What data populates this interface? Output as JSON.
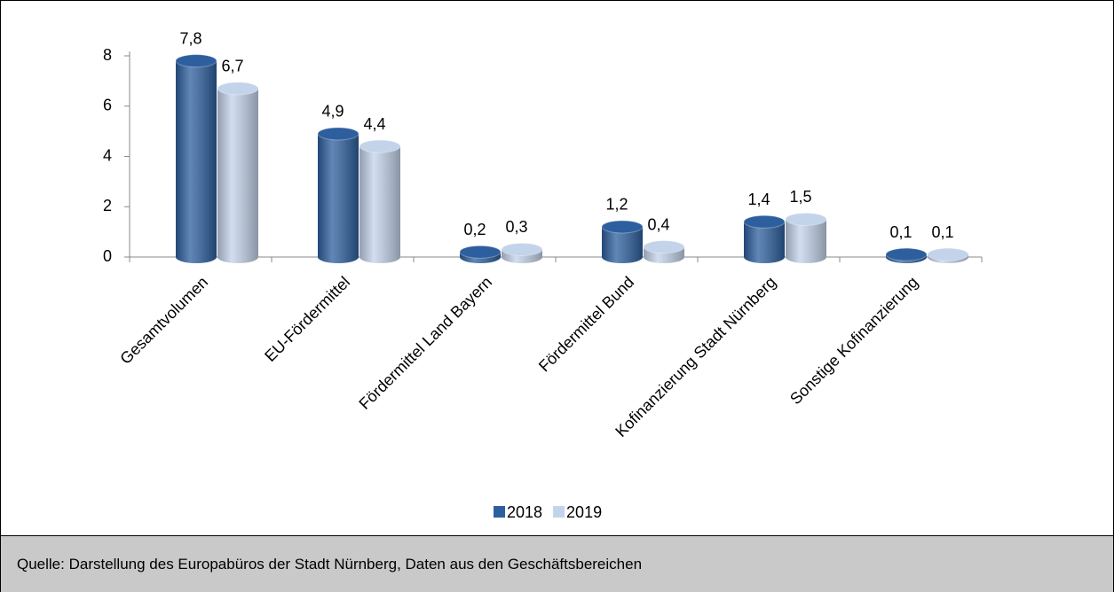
{
  "chart_data": {
    "type": "bar",
    "categories": [
      "Gesamtvolumen",
      "EU-Fördermittel",
      "Fördermittel Land Bayern",
      "Fördermittel Bund",
      "Kofinanzierung Stadt Nürnberg",
      "Sonstige Kofinanzierung"
    ],
    "series": [
      {
        "name": "2018",
        "color": "#2d5f9e",
        "values": [
          7.8,
          4.9,
          0.2,
          1.2,
          1.4,
          0.1
        ],
        "value_labels": [
          "7,8",
          "4,9",
          "0,2",
          "1,2",
          "1,4",
          "0,1"
        ]
      },
      {
        "name": "2019",
        "color": "#c3d3ea",
        "values": [
          6.7,
          4.4,
          0.3,
          0.4,
          1.5,
          0.1
        ],
        "value_labels": [
          "6,7",
          "4,4",
          "0,3",
          "0,4",
          "1,5",
          "0,1"
        ]
      }
    ],
    "ylim": [
      0,
      8
    ],
    "yticks": [
      0,
      2,
      4,
      6,
      8
    ],
    "legend": "bottom"
  },
  "footer": {
    "source": "Quelle: Darstellung des Europabüros der Stadt Nürnberg, Daten aus den Geschäftsbereichen"
  }
}
